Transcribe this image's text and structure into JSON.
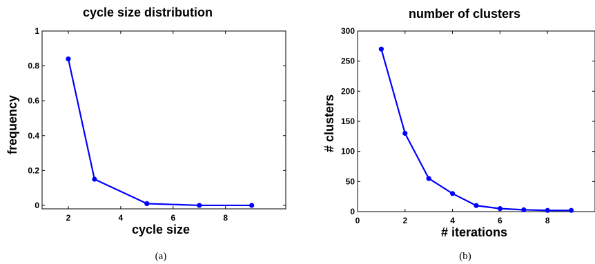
{
  "colors": {
    "series": "#0000ff",
    "axes": "#000000",
    "background": "#ffffff"
  },
  "chart_data": [
    {
      "type": "line",
      "title": "cycle size distribution",
      "xlabel": "cycle size",
      "ylabel": "frequency",
      "caption": "(a)",
      "xlim": [
        1,
        10.3
      ],
      "ylim": [
        -0.02,
        1
      ],
      "xticks": [
        2,
        4,
        6,
        8
      ],
      "xtick_labels": [
        "2",
        "4",
        "6",
        "8"
      ],
      "yticks": [
        0,
        0.2,
        0.4,
        0.6,
        0.8,
        1
      ],
      "ytick_labels": [
        "0",
        "0.2",
        "0.4",
        "0.6",
        "0.8",
        "1"
      ],
      "grid": false,
      "markers": true,
      "series": [
        {
          "x": [
            2,
            3,
            5,
            7,
            9
          ],
          "y": [
            0.84,
            0.15,
            0.01,
            0.0,
            0.0
          ]
        }
      ]
    },
    {
      "type": "line",
      "title": "number of clusters",
      "xlabel": "# iterations",
      "ylabel": "# clusters",
      "caption": "(b)",
      "xlim": [
        0,
        10
      ],
      "ylim": [
        0,
        300
      ],
      "xticks": [
        0,
        2,
        4,
        6,
        8
      ],
      "xtick_labels": [
        "0",
        "2",
        "4",
        "6",
        "8"
      ],
      "yticks": [
        0,
        50,
        100,
        150,
        200,
        250,
        300
      ],
      "ytick_labels": [
        "0",
        "50",
        "100",
        "150",
        "200",
        "250",
        "300"
      ],
      "grid": false,
      "markers": true,
      "series": [
        {
          "x": [
            1,
            2,
            3,
            4,
            5,
            6,
            7,
            8,
            9
          ],
          "y": [
            270,
            130,
            55,
            30,
            10,
            5,
            3,
            2,
            2
          ]
        }
      ]
    }
  ]
}
